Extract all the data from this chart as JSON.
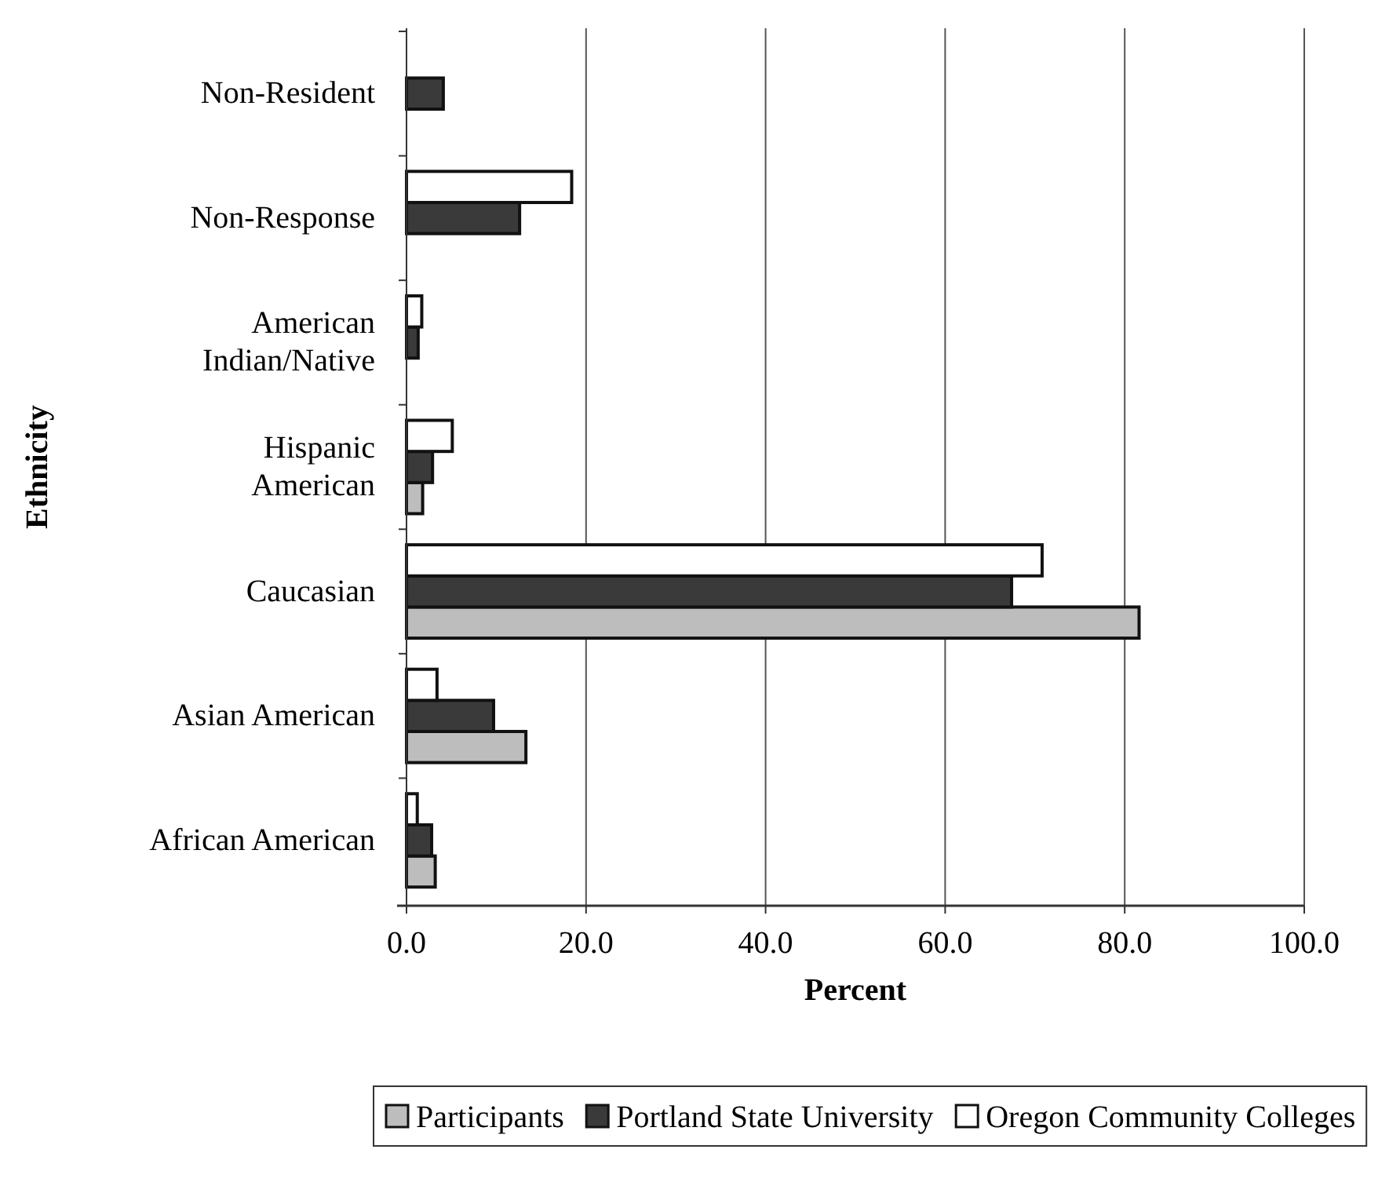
{
  "chart_data": {
    "type": "bar",
    "orientation": "horizontal",
    "xlabel": "Percent",
    "ylabel": "Ethnicity",
    "categories": [
      "Non-Resident",
      "Non-Response",
      "American\nIndian/Native",
      "Hispanic\nAmerican",
      "Caucasian",
      "Asian American",
      "African American"
    ],
    "series": [
      {
        "name": "Participants",
        "color": "#bdbdbd",
        "values": [
          null,
          null,
          null,
          1.8,
          81.6,
          13.3,
          3.2
        ]
      },
      {
        "name": "Portland State University",
        "color": "#3a3a3a",
        "values": [
          4.1,
          12.6,
          1.3,
          2.9,
          67.4,
          9.7,
          2.8
        ]
      },
      {
        "name": "Oregon Community Colleges",
        "color": "#ffffff",
        "values": [
          null,
          18.4,
          1.7,
          5.1,
          70.8,
          3.4,
          1.2
        ]
      }
    ],
    "xlim": [
      0,
      100
    ],
    "xticks": [
      {
        "value": 0,
        "label": "0.0"
      },
      {
        "value": 20,
        "label": "20.0"
      },
      {
        "value": 40,
        "label": "40.0"
      },
      {
        "value": 60,
        "label": "60.0"
      },
      {
        "value": 80,
        "label": "80.0"
      },
      {
        "value": 100,
        "label": "100.0"
      }
    ],
    "grid": "x",
    "legend": "bottom"
  }
}
